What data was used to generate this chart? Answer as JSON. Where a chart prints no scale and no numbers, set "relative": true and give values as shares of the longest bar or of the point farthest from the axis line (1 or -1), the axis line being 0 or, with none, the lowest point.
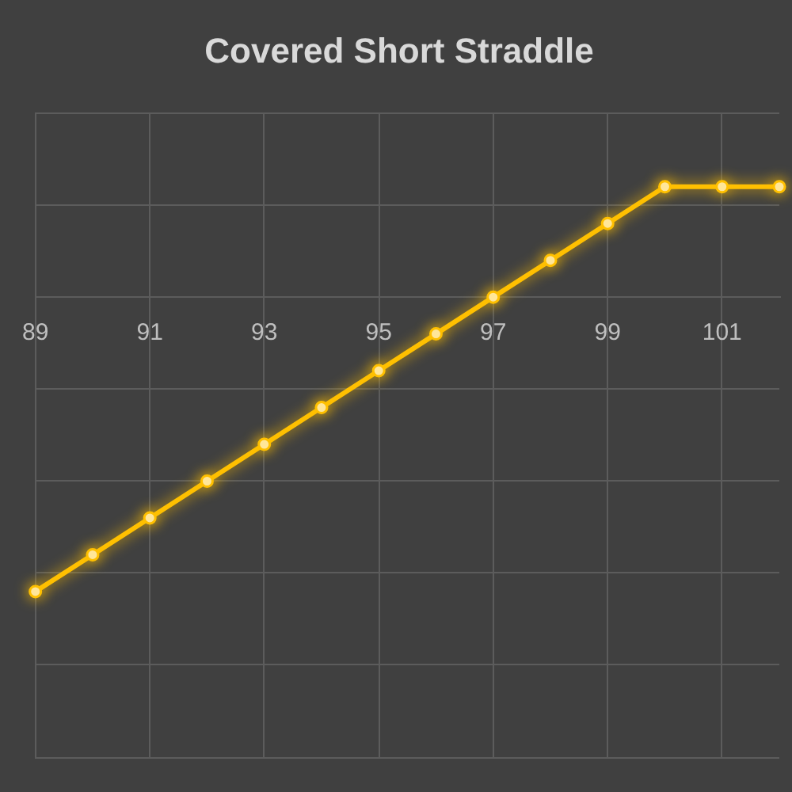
{
  "chart_data": {
    "type": "line",
    "title": "Covered Short Straddle",
    "x": [
      89,
      90,
      91,
      92,
      93,
      94,
      95,
      96,
      97,
      98,
      99,
      100,
      101,
      102
    ],
    "series": [
      {
        "color": "#ffc000",
        "values": [
          -1,
          -0.875,
          -0.75,
          -0.625,
          -0.5,
          -0.375,
          -0.25,
          -0.125,
          0,
          0.125,
          0.25,
          0.375,
          0.375,
          0.375
        ]
      }
    ],
    "relative": true,
    "xlim": [
      89,
      102
    ],
    "xticks": [
      89,
      91,
      93,
      95,
      97,
      99,
      101
    ],
    "grid": true,
    "marker": "circle",
    "line_style": "solid"
  }
}
